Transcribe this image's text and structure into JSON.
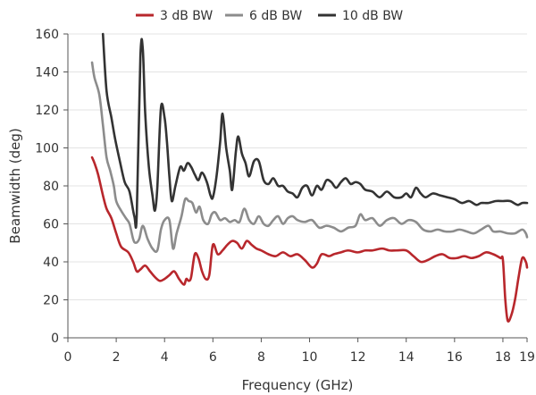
{
  "chart_data": {
    "type": "line",
    "xlabel": "Frequency (GHz)",
    "ylabel": "Beamwidth (deg)",
    "xlim": [
      0,
      19
    ],
    "ylim": [
      0,
      160
    ],
    "xticks": [
      "0",
      "2",
      "4",
      "6",
      "8",
      "10",
      "12",
      "14",
      "16",
      "18",
      "19"
    ],
    "xtick_values": [
      0,
      2,
      4,
      6,
      8,
      10,
      12,
      14,
      16,
      18,
      19
    ],
    "yticks": [
      "0",
      "20",
      "40",
      "60",
      "80",
      "100",
      "120",
      "140",
      "160"
    ],
    "ytick_values": [
      0,
      20,
      40,
      60,
      80,
      100,
      120,
      140,
      160
    ],
    "grid": "horizontal",
    "legend_position": "top",
    "series": [
      {
        "name": "3 dB BW",
        "color": "#b8272c",
        "points": [
          [
            1.0,
            95
          ],
          [
            1.1,
            92
          ],
          [
            1.25,
            86
          ],
          [
            1.45,
            75
          ],
          [
            1.6,
            68
          ],
          [
            1.8,
            63
          ],
          [
            2.0,
            55
          ],
          [
            2.2,
            48
          ],
          [
            2.5,
            45
          ],
          [
            2.7,
            40
          ],
          [
            2.85,
            35
          ],
          [
            3.0,
            36
          ],
          [
            3.2,
            38
          ],
          [
            3.4,
            35
          ],
          [
            3.6,
            32
          ],
          [
            3.8,
            30
          ],
          [
            4.0,
            31
          ],
          [
            4.2,
            33
          ],
          [
            4.4,
            35
          ],
          [
            4.6,
            31
          ],
          [
            4.8,
            28
          ],
          [
            4.9,
            31
          ],
          [
            5.0,
            30
          ],
          [
            5.1,
            32
          ],
          [
            5.25,
            44
          ],
          [
            5.4,
            42
          ],
          [
            5.55,
            35
          ],
          [
            5.7,
            31
          ],
          [
            5.85,
            33
          ],
          [
            6.0,
            49
          ],
          [
            6.2,
            44
          ],
          [
            6.4,
            46
          ],
          [
            6.6,
            49
          ],
          [
            6.8,
            51
          ],
          [
            7.0,
            50
          ],
          [
            7.2,
            47
          ],
          [
            7.4,
            51
          ],
          [
            7.6,
            49
          ],
          [
            7.8,
            47
          ],
          [
            8.0,
            46
          ],
          [
            8.3,
            44
          ],
          [
            8.6,
            43
          ],
          [
            8.9,
            45
          ],
          [
            9.2,
            43
          ],
          [
            9.5,
            44
          ],
          [
            9.8,
            41
          ],
          [
            10.1,
            37
          ],
          [
            10.3,
            39
          ],
          [
            10.5,
            44
          ],
          [
            10.8,
            43
          ],
          [
            11.0,
            44
          ],
          [
            11.3,
            45
          ],
          [
            11.6,
            46
          ],
          [
            12.0,
            45
          ],
          [
            12.3,
            46
          ],
          [
            12.6,
            46
          ],
          [
            13.0,
            47
          ],
          [
            13.3,
            46
          ],
          [
            13.6,
            46
          ],
          [
            14.0,
            46
          ],
          [
            14.3,
            43
          ],
          [
            14.6,
            40
          ],
          [
            14.9,
            41
          ],
          [
            15.2,
            43
          ],
          [
            15.5,
            44
          ],
          [
            15.8,
            42
          ],
          [
            16.1,
            42
          ],
          [
            16.4,
            43
          ],
          [
            16.7,
            42
          ],
          [
            17.0,
            43
          ],
          [
            17.3,
            45
          ],
          [
            17.6,
            44
          ],
          [
            17.9,
            42
          ],
          [
            18.0,
            41
          ],
          [
            18.1,
            20
          ],
          [
            18.2,
            9
          ],
          [
            18.35,
            12
          ],
          [
            18.5,
            20
          ],
          [
            18.65,
            32
          ],
          [
            18.8,
            42
          ],
          [
            18.95,
            40
          ],
          [
            19.0,
            37
          ]
        ]
      },
      {
        "name": "6 dB BW",
        "color": "#8c8c8c",
        "points": [
          [
            1.0,
            145
          ],
          [
            1.1,
            137
          ],
          [
            1.3,
            128
          ],
          [
            1.45,
            112
          ],
          [
            1.6,
            95
          ],
          [
            1.75,
            88
          ],
          [
            1.9,
            80
          ],
          [
            2.0,
            72
          ],
          [
            2.2,
            67
          ],
          [
            2.4,
            63
          ],
          [
            2.55,
            60
          ],
          [
            2.7,
            52
          ],
          [
            2.8,
            50
          ],
          [
            2.95,
            52
          ],
          [
            3.1,
            59
          ],
          [
            3.3,
            52
          ],
          [
            3.5,
            47
          ],
          [
            3.7,
            46
          ],
          [
            3.85,
            57
          ],
          [
            4.0,
            62
          ],
          [
            4.2,
            62
          ],
          [
            4.35,
            47
          ],
          [
            4.5,
            55
          ],
          [
            4.7,
            64
          ],
          [
            4.85,
            73
          ],
          [
            5.0,
            72
          ],
          [
            5.15,
            71
          ],
          [
            5.3,
            66
          ],
          [
            5.45,
            69
          ],
          [
            5.6,
            62
          ],
          [
            5.8,
            60
          ],
          [
            5.95,
            65
          ],
          [
            6.1,
            66
          ],
          [
            6.3,
            62
          ],
          [
            6.5,
            63
          ],
          [
            6.7,
            61
          ],
          [
            6.9,
            62
          ],
          [
            7.1,
            61
          ],
          [
            7.3,
            68
          ],
          [
            7.5,
            62
          ],
          [
            7.7,
            60
          ],
          [
            7.9,
            64
          ],
          [
            8.1,
            60
          ],
          [
            8.3,
            59
          ],
          [
            8.5,
            62
          ],
          [
            8.7,
            64
          ],
          [
            8.9,
            60
          ],
          [
            9.1,
            63
          ],
          [
            9.3,
            64
          ],
          [
            9.5,
            62
          ],
          [
            9.8,
            61
          ],
          [
            10.1,
            62
          ],
          [
            10.4,
            58
          ],
          [
            10.7,
            59
          ],
          [
            11.0,
            58
          ],
          [
            11.3,
            56
          ],
          [
            11.6,
            58
          ],
          [
            11.9,
            59
          ],
          [
            12.1,
            65
          ],
          [
            12.3,
            62
          ],
          [
            12.6,
            63
          ],
          [
            12.9,
            59
          ],
          [
            13.2,
            62
          ],
          [
            13.5,
            63
          ],
          [
            13.8,
            60
          ],
          [
            14.1,
            62
          ],
          [
            14.4,
            61
          ],
          [
            14.7,
            57
          ],
          [
            15.0,
            56
          ],
          [
            15.3,
            57
          ],
          [
            15.6,
            56
          ],
          [
            15.9,
            56
          ],
          [
            16.2,
            57
          ],
          [
            16.5,
            56
          ],
          [
            16.8,
            55
          ],
          [
            17.1,
            57
          ],
          [
            17.4,
            59
          ],
          [
            17.6,
            56
          ],
          [
            17.9,
            56
          ],
          [
            18.2,
            55
          ],
          [
            18.5,
            55
          ],
          [
            18.8,
            57
          ],
          [
            18.95,
            55
          ],
          [
            19.0,
            53
          ]
        ]
      },
      {
        "name": "10 dB BW",
        "color": "#333333",
        "points": [
          [
            1.45,
            160
          ],
          [
            1.6,
            130
          ],
          [
            1.8,
            116
          ],
          [
            1.95,
            105
          ],
          [
            2.15,
            93
          ],
          [
            2.35,
            82
          ],
          [
            2.55,
            77
          ],
          [
            2.75,
            64
          ],
          [
            2.85,
            65
          ],
          [
            3.0,
            148
          ],
          [
            3.1,
            152
          ],
          [
            3.2,
            118
          ],
          [
            3.35,
            90
          ],
          [
            3.5,
            75
          ],
          [
            3.6,
            67
          ],
          [
            3.7,
            79
          ],
          [
            3.85,
            121
          ],
          [
            4.0,
            116
          ],
          [
            4.1,
            103
          ],
          [
            4.2,
            85
          ],
          [
            4.3,
            72
          ],
          [
            4.45,
            80
          ],
          [
            4.65,
            90
          ],
          [
            4.8,
            88
          ],
          [
            4.95,
            92
          ],
          [
            5.1,
            90
          ],
          [
            5.25,
            86
          ],
          [
            5.4,
            83
          ],
          [
            5.55,
            87
          ],
          [
            5.75,
            82
          ],
          [
            5.9,
            75
          ],
          [
            6.0,
            74
          ],
          [
            6.15,
            85
          ],
          [
            6.3,
            103
          ],
          [
            6.4,
            118
          ],
          [
            6.55,
            100
          ],
          [
            6.7,
            88
          ],
          [
            6.8,
            78
          ],
          [
            6.95,
            98
          ],
          [
            7.05,
            106
          ],
          [
            7.2,
            97
          ],
          [
            7.35,
            92
          ],
          [
            7.5,
            85
          ],
          [
            7.7,
            93
          ],
          [
            7.9,
            93
          ],
          [
            8.1,
            83
          ],
          [
            8.3,
            81
          ],
          [
            8.5,
            84
          ],
          [
            8.7,
            80
          ],
          [
            8.9,
            80
          ],
          [
            9.1,
            77
          ],
          [
            9.3,
            76
          ],
          [
            9.5,
            74
          ],
          [
            9.7,
            79
          ],
          [
            9.9,
            80
          ],
          [
            10.1,
            75
          ],
          [
            10.3,
            80
          ],
          [
            10.5,
            78
          ],
          [
            10.7,
            83
          ],
          [
            10.9,
            82
          ],
          [
            11.1,
            79
          ],
          [
            11.3,
            82
          ],
          [
            11.5,
            84
          ],
          [
            11.7,
            81
          ],
          [
            11.9,
            82
          ],
          [
            12.1,
            81
          ],
          [
            12.3,
            78
          ],
          [
            12.6,
            77
          ],
          [
            12.9,
            74
          ],
          [
            13.2,
            77
          ],
          [
            13.5,
            74
          ],
          [
            13.8,
            74
          ],
          [
            14.0,
            76
          ],
          [
            14.2,
            74
          ],
          [
            14.4,
            79
          ],
          [
            14.6,
            76
          ],
          [
            14.8,
            74
          ],
          [
            15.1,
            76
          ],
          [
            15.4,
            75
          ],
          [
            15.7,
            74
          ],
          [
            16.0,
            73
          ],
          [
            16.3,
            71
          ],
          [
            16.6,
            72
          ],
          [
            16.9,
            70
          ],
          [
            17.1,
            71
          ],
          [
            17.4,
            71
          ],
          [
            17.7,
            72
          ],
          [
            18.0,
            72
          ],
          [
            18.3,
            72
          ],
          [
            18.6,
            70
          ],
          [
            18.8,
            71
          ],
          [
            19.0,
            71
          ]
        ]
      }
    ]
  }
}
